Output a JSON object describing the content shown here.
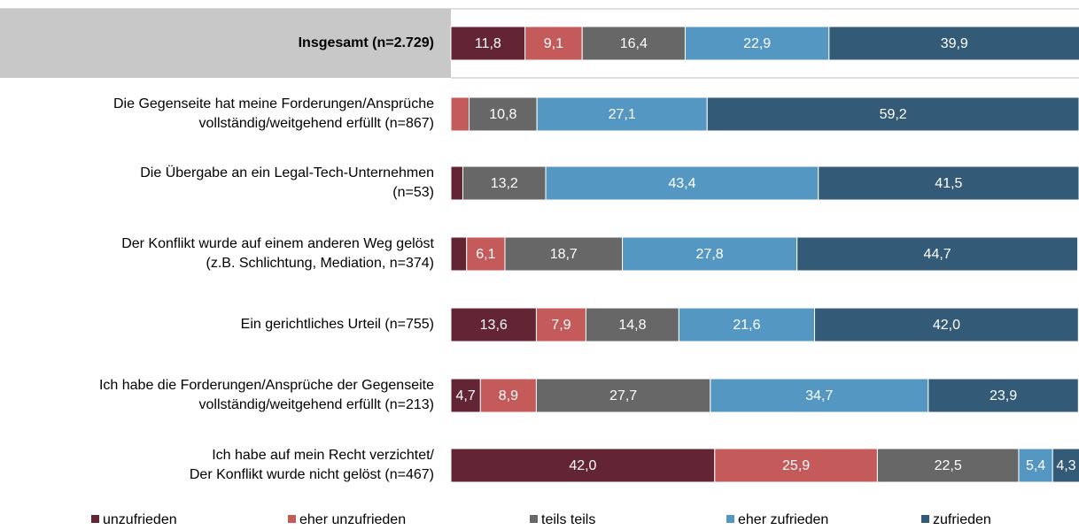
{
  "chart_data": {
    "type": "bar",
    "orientation": "horizontal",
    "stacked": true,
    "categories": [
      [
        "Insgesamt (n=2.729)"
      ],
      [
        "Die Gegenseite hat meine Forderungen/Ansprüche",
        "vollständig/weitgehend erfüllt (n=867)"
      ],
      [
        "Die Übergabe an ein Legal-Tech-Unternehmen",
        "(n=53)"
      ],
      [
        "Der Konflikt wurde auf einem anderen Weg gelöst",
        "(z.B. Schlichtung, Mediation, n=374)"
      ],
      [
        "Ein gerichtliches Urteil (n=755)"
      ],
      [
        "Ich habe die Forderungen/Ansprüche der Gegenseite",
        "vollständig/weitgehend erfüllt (n=213)"
      ],
      [
        "Ich habe auf mein Recht verzichtet/",
        "Der Konflikt wurde nicht gelöst (n=467)"
      ]
    ],
    "series": [
      {
        "name": "unzufrieden",
        "color": "#632433",
        "values": [
          11.8,
          null,
          1.9,
          2.5,
          13.6,
          4.7,
          42.0
        ],
        "value_labels": [
          "11,8",
          null,
          null,
          null,
          "13,6",
          "4,7",
          "42,0"
        ]
      },
      {
        "name": "eher unzufrieden",
        "color": "#c55a5a",
        "values": [
          9.1,
          2.9,
          null,
          6.1,
          7.9,
          8.9,
          25.9
        ],
        "value_labels": [
          "9,1",
          null,
          null,
          "6,1",
          "7,9",
          "8,9",
          "25,9"
        ]
      },
      {
        "name": "teils teils",
        "color": "#676767",
        "values": [
          16.4,
          10.8,
          13.2,
          18.7,
          14.8,
          27.7,
          22.5
        ],
        "value_labels": [
          "16,4",
          "10,8",
          "13,2",
          "18,7",
          "14,8",
          "27,7",
          "22,5"
        ]
      },
      {
        "name": "eher zufrieden",
        "color": "#5597c3",
        "values": [
          22.9,
          27.1,
          43.4,
          27.8,
          21.6,
          34.7,
          5.4
        ],
        "value_labels": [
          "22,9",
          "27,1",
          "43,4",
          "27,8",
          "21,6",
          "34,7",
          "5,4"
        ]
      },
      {
        "name": "zufrieden",
        "color": "#335a77",
        "values": [
          39.9,
          59.2,
          41.5,
          44.7,
          42.0,
          23.9,
          4.3
        ],
        "value_labels": [
          "39,9",
          "59,2",
          "41,5",
          "44,7",
          "42,0",
          "23,9",
          "4,3"
        ]
      }
    ],
    "xlim": [
      0,
      100
    ],
    "legend": "bottom"
  }
}
